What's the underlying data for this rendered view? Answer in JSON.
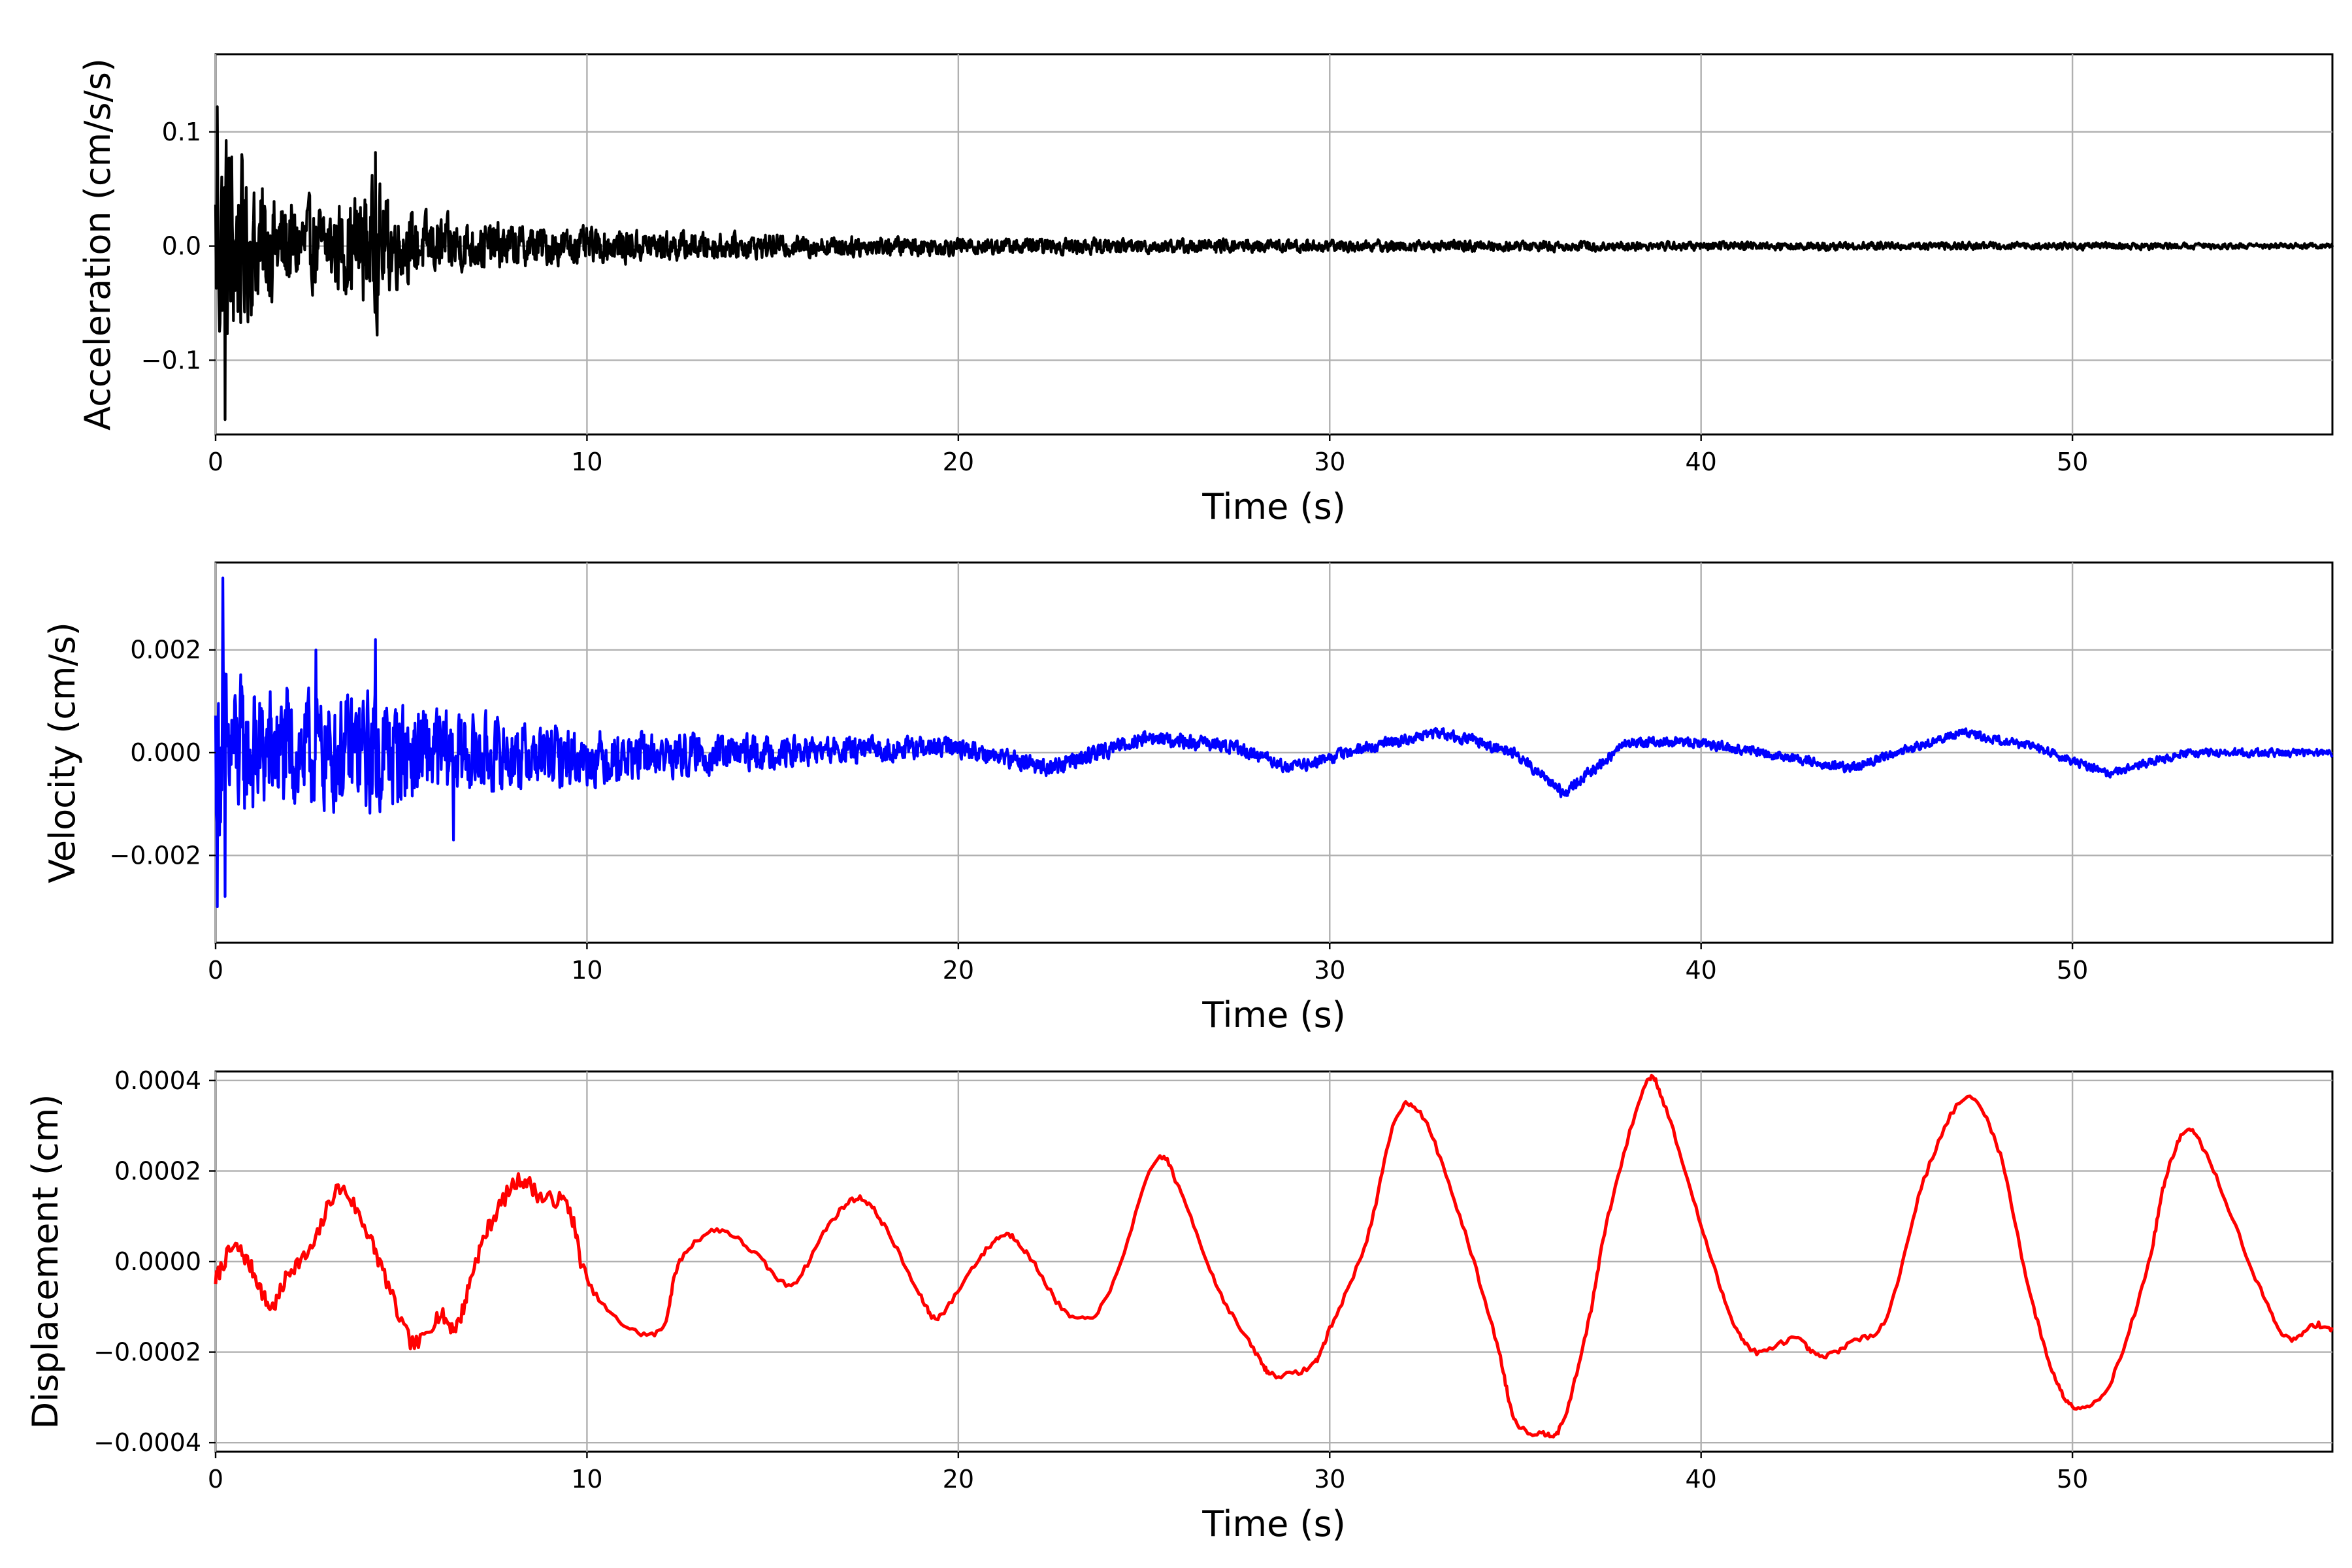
{
  "figure": {
    "background": "#ffffff"
  },
  "chart_data": [
    {
      "type": "line",
      "name": "acceleration",
      "xlabel": "Time (s)",
      "ylabel": "Acceleration (cm/s/s)",
      "xlim": [
        0,
        57
      ],
      "ylim": [
        -0.165,
        0.168
      ],
      "xticks": [
        0,
        10,
        20,
        30,
        40,
        50
      ],
      "xtick_labels": [
        "0",
        "10",
        "20",
        "30",
        "40",
        "50"
      ],
      "yticks": [
        -0.1,
        0.0,
        0.1
      ],
      "ytick_labels": [
        "−0.1",
        "0.0",
        "0.1"
      ],
      "grid": true,
      "color": "#000000",
      "series": [
        {
          "signal": "noise",
          "amplitude_envelope": [
            [
              0,
              0.13
            ],
            [
              0.3,
              0.14
            ],
            [
              1,
              0.075
            ],
            [
              2,
              0.055
            ],
            [
              3,
              0.045
            ],
            [
              4.3,
              0.075
            ],
            [
              5,
              0.04
            ],
            [
              7,
              0.028
            ],
            [
              10,
              0.02
            ],
            [
              15,
              0.013
            ],
            [
              20,
              0.01
            ],
            [
              30,
              0.007
            ],
            [
              40,
              0.005
            ],
            [
              50,
              0.004
            ],
            [
              57,
              0.003
            ]
          ],
          "extremes": [
            {
              "x": 0.25,
              "y": -0.152
            },
            {
              "x": 0.05,
              "y": 0.122
            },
            {
              "x": 4.3,
              "y": 0.082
            },
            {
              "x": 4.35,
              "y": -0.078
            }
          ]
        }
      ]
    },
    {
      "type": "line",
      "name": "velocity",
      "xlabel": "Time (s)",
      "ylabel": "Velocity (cm/s)",
      "xlim": [
        0,
        57
      ],
      "ylim": [
        -0.0037,
        0.0037
      ],
      "xticks": [
        0,
        10,
        20,
        30,
        40,
        50
      ],
      "xtick_labels": [
        "0",
        "10",
        "20",
        "30",
        "40",
        "50"
      ],
      "yticks": [
        -0.002,
        0.0,
        0.002
      ],
      "ytick_labels": [
        "−0.002",
        "0.000",
        "0.002"
      ],
      "grid": true,
      "color": "#0000ff",
      "series": [
        {
          "signal": "noise+trend",
          "trend": [
            [
              0,
              0
            ],
            [
              5,
              0
            ],
            [
              10,
              -0.0001
            ],
            [
              15,
              0.0
            ],
            [
              20,
              0.0001
            ],
            [
              22.5,
              -0.0003
            ],
            [
              25,
              0.0003
            ],
            [
              27.5,
              0.0001
            ],
            [
              29,
              -0.0003
            ],
            [
              31,
              0.0001
            ],
            [
              33,
              0.0004
            ],
            [
              35,
              0.0
            ],
            [
              36.3,
              -0.0008
            ],
            [
              38,
              0.0002
            ],
            [
              40,
              0.0002
            ],
            [
              44,
              -0.0003
            ],
            [
              47,
              0.0004
            ],
            [
              49,
              0.0001
            ],
            [
              51,
              -0.0004
            ],
            [
              53,
              0.0
            ],
            [
              57,
              0.0
            ]
          ],
          "amplitude_envelope": [
            [
              0,
              0.0022
            ],
            [
              1,
              0.0017
            ],
            [
              3,
              0.0014
            ],
            [
              4.3,
              0.0016
            ],
            [
              6,
              0.0011
            ],
            [
              10,
              0.0007
            ],
            [
              15,
              0.0004
            ],
            [
              20,
              0.00025
            ],
            [
              30,
              0.00015
            ],
            [
              57,
              0.0001
            ]
          ],
          "extremes": [
            {
              "x": 0.2,
              "y": 0.0034
            },
            {
              "x": 0.25,
              "y": -0.0028
            },
            {
              "x": 0.05,
              "y": -0.003
            },
            {
              "x": 2.7,
              "y": 0.002
            },
            {
              "x": 4.3,
              "y": 0.0022
            },
            {
              "x": 6.4,
              "y": -0.0017
            }
          ]
        }
      ]
    },
    {
      "type": "line",
      "name": "displacement",
      "xlabel": "Time (s)",
      "ylabel": "Displacement (cm)",
      "xlim": [
        0,
        57
      ],
      "ylim": [
        -0.00042,
        0.00042
      ],
      "xticks": [
        0,
        10,
        20,
        30,
        40,
        50
      ],
      "xtick_labels": [
        "0",
        "10",
        "20",
        "30",
        "40",
        "50"
      ],
      "yticks": [
        -0.0004,
        -0.0002,
        0.0,
        0.0002,
        0.0004
      ],
      "ytick_labels": [
        "−0.0004",
        "−0.0002",
        "0.0000",
        "0.0002",
        "0.0004"
      ],
      "grid": true,
      "color": "#ff0000",
      "series": [
        {
          "signal": "curve",
          "points": [
            [
              0,
              -4e-05
            ],
            [
              0.5,
              3e-05
            ],
            [
              1,
              -2e-05
            ],
            [
              1.5,
              -0.0001
            ],
            [
              2,
              -2e-05
            ],
            [
              2.6,
              3e-05
            ],
            [
              3.3,
              0.00016
            ],
            [
              4,
              8e-05
            ],
            [
              4.5,
              -2e-05
            ],
            [
              5.3,
              -0.00018
            ],
            [
              6,
              -0.00012
            ],
            [
              6.5,
              -0.00014
            ],
            [
              7,
              0.0
            ],
            [
              7.5,
              0.0001
            ],
            [
              8.2,
              0.00018
            ],
            [
              8.8,
              0.00014
            ],
            [
              9.5,
              0.00012
            ],
            [
              10,
              -4e-05
            ],
            [
              11,
              -0.00014
            ],
            [
              12,
              -0.00015
            ],
            [
              12.5,
              0.0
            ],
            [
              13.5,
              7e-05
            ],
            [
              14.5,
              2e-05
            ],
            [
              15.5,
              -5e-05
            ],
            [
              16.5,
              8e-05
            ],
            [
              17.3,
              0.00014
            ],
            [
              18,
              8e-05
            ],
            [
              19,
              -8e-05
            ],
            [
              19.5,
              -0.00012
            ],
            [
              20.5,
              0.0
            ],
            [
              21.3,
              6e-05
            ],
            [
              22,
              0.0
            ],
            [
              23,
              -0.00012
            ],
            [
              24,
              -8e-05
            ],
            [
              25.3,
              0.00022
            ],
            [
              26,
              0.00015
            ],
            [
              27,
              -6e-05
            ],
            [
              28,
              -0.0002
            ],
            [
              28.5,
              -0.00025
            ],
            [
              29.5,
              -0.00023
            ],
            [
              30,
              -0.00015
            ],
            [
              31,
              5e-05
            ],
            [
              31.8,
              0.00032
            ],
            [
              32.5,
              0.00032
            ],
            [
              33.5,
              0.0001
            ],
            [
              34.5,
              -0.00018
            ],
            [
              35,
              -0.00035
            ],
            [
              35.8,
              -0.00038
            ],
            [
              36.3,
              -0.00035
            ],
            [
              37,
              -0.00012
            ],
            [
              37.5,
              0.0001
            ],
            [
              38.5,
              0.00039
            ],
            [
              39,
              0.00035
            ],
            [
              40,
              8e-05
            ],
            [
              40.8,
              -0.00012
            ],
            [
              41.5,
              -0.0002
            ],
            [
              42.5,
              -0.00017
            ],
            [
              43.2,
              -0.00021
            ],
            [
              44,
              -0.00018
            ],
            [
              45,
              -0.00012
            ],
            [
              46,
              0.00018
            ],
            [
              47.1,
              0.00036
            ],
            [
              48,
              0.00025
            ],
            [
              48.8,
              -5e-05
            ],
            [
              49.5,
              -0.00025
            ],
            [
              50.1,
              -0.00032
            ],
            [
              51,
              -0.00027
            ],
            [
              52,
              -2e-05
            ],
            [
              52.5,
              0.00018
            ],
            [
              53.1,
              0.00029
            ],
            [
              53.8,
              0.0002
            ],
            [
              55,
              -5e-05
            ],
            [
              55.8,
              -0.00017
            ],
            [
              56.5,
              -0.00014
            ],
            [
              57,
              -0.00015
            ]
          ]
        }
      ]
    }
  ]
}
